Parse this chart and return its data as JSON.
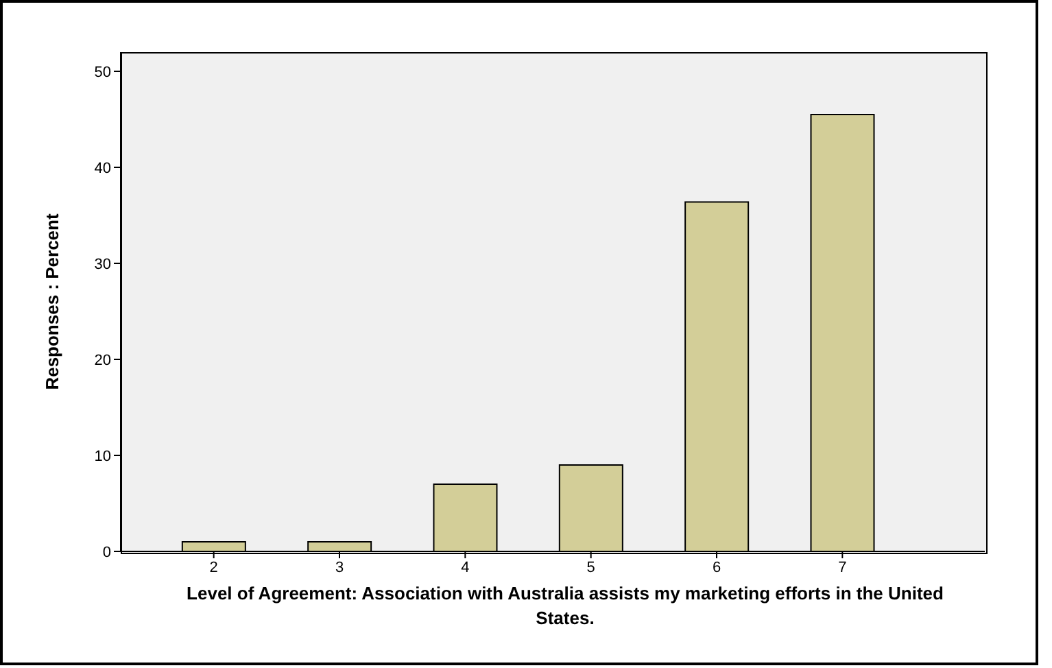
{
  "chart_data": {
    "type": "bar",
    "xlabel": "Level of Agreement: Association with Australia assists my marketing efforts in the United States.",
    "ylabel": "Responses : Percent",
    "categories": [
      "2",
      "3",
      "4",
      "5",
      "6",
      "7"
    ],
    "values": [
      1,
      1,
      7,
      9,
      36.4,
      45.5
    ],
    "color": "#d3ce98",
    "ylim": [
      0,
      52
    ],
    "yticks": [
      0,
      10,
      20,
      30,
      40,
      50
    ],
    "grid": false,
    "legend": false
  }
}
